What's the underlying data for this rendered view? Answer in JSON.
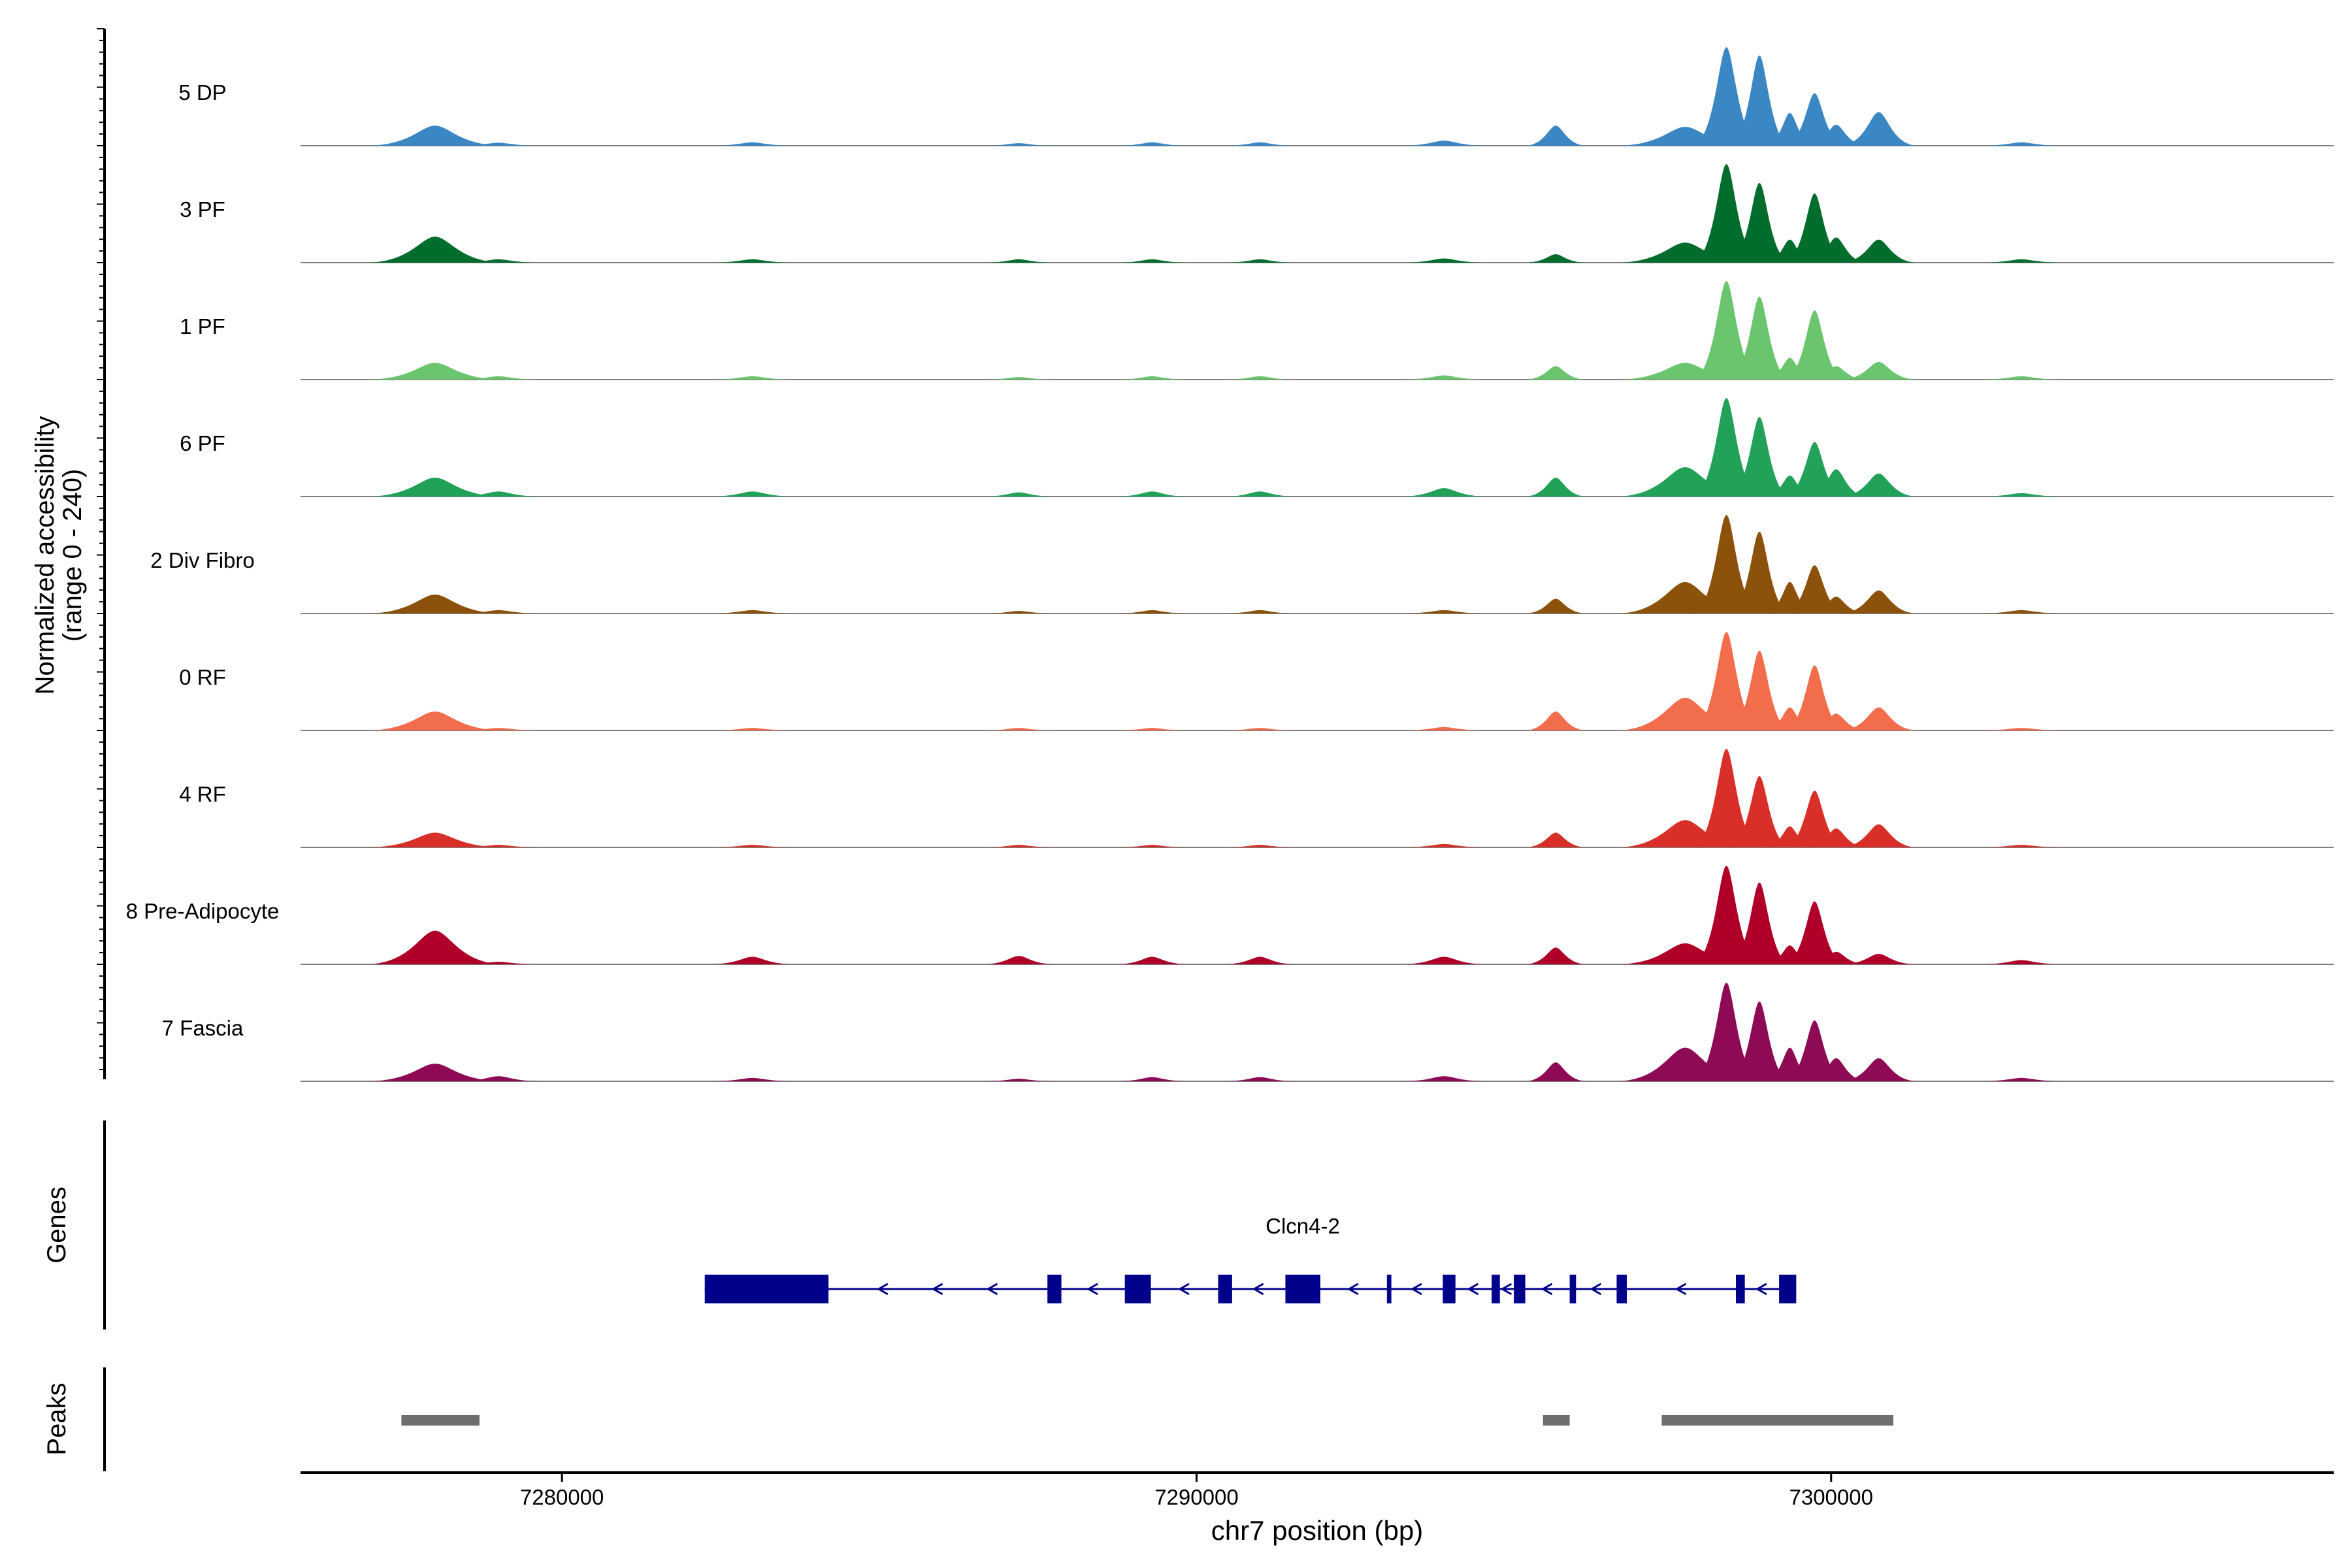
{
  "colors": {
    "axis": "#000000",
    "baseline": "#7f7f7f",
    "gene": "#00008b",
    "peak": "#6e6e6e"
  },
  "chart_data": {
    "type": "area",
    "title": "",
    "ylabel_line1": "Normalized accessibility",
    "ylabel_line2": "(range 0 - 240)",
    "xlabel": "chr7 position (bp)",
    "ylim": [
      0,
      240
    ],
    "xlim": [
      7275880,
      7307920
    ],
    "xticks": [
      7280000,
      7290000,
      7300000
    ],
    "xtick_labels": [
      "7280000",
      "7290000",
      "7300000"
    ],
    "shared_y_positions": [
      7278000,
      7279000,
      7283000,
      7287200,
      7289300,
      7291000,
      7293900,
      7295660,
      7297700,
      7298350,
      7298870,
      7299350,
      7299740,
      7300080,
      7300750,
      7303000
    ],
    "series": [
      {
        "name": "5 DP",
        "color": "#3a87c4",
        "values": [
          48,
          7,
          8,
          6,
          8,
          8,
          12,
          48,
          45,
          235,
          215,
          78,
          125,
          50,
          80,
          8
        ]
      },
      {
        "name": "3 PF",
        "color": "#006d2c",
        "values": [
          62,
          8,
          8,
          8,
          8,
          8,
          10,
          20,
          48,
          235,
          190,
          55,
          165,
          60,
          55,
          8
        ]
      },
      {
        "name": "1 PF",
        "color": "#6bc56e",
        "values": [
          40,
          8,
          8,
          6,
          8,
          8,
          10,
          32,
          40,
          235,
          198,
          52,
          165,
          32,
          42,
          8
        ]
      },
      {
        "name": "6 PF",
        "color": "#22a158",
        "values": [
          45,
          12,
          12,
          10,
          12,
          12,
          20,
          45,
          70,
          235,
          190,
          50,
          130,
          65,
          55,
          8
        ]
      },
      {
        "name": "2 Div Fibro",
        "color": "#8c510a",
        "values": [
          45,
          8,
          8,
          6,
          8,
          8,
          8,
          35,
          75,
          235,
          195,
          75,
          115,
          40,
          55,
          8
        ]
      },
      {
        "name": "0 RF",
        "color": "#f26d4b",
        "values": [
          45,
          6,
          6,
          6,
          6,
          6,
          8,
          45,
          78,
          235,
          190,
          55,
          155,
          40,
          55,
          6
        ]
      },
      {
        "name": "4 RF",
        "color": "#d82f28",
        "values": [
          35,
          6,
          6,
          6,
          6,
          6,
          8,
          35,
          65,
          235,
          170,
          50,
          135,
          45,
          55,
          6
        ]
      },
      {
        "name": "8 Pre-Adipocyte",
        "color": "#b0002a",
        "values": [
          80,
          6,
          18,
          20,
          18,
          18,
          18,
          40,
          50,
          235,
          195,
          45,
          150,
          30,
          25,
          10
        ]
      },
      {
        "name": "7 Fascia",
        "color": "#8e0a55",
        "values": [
          42,
          12,
          8,
          6,
          10,
          10,
          12,
          45,
          80,
          235,
          190,
          80,
          145,
          55,
          55,
          8
        ]
      }
    ],
    "genes_track_label": "Genes",
    "gene": {
      "name": "Clcn4-2",
      "strand": "-",
      "start": 7282250,
      "end": 7299450,
      "exons": [
        [
          7282250,
          7284200
        ],
        [
          7287650,
          7287870
        ],
        [
          7288870,
          7289280
        ],
        [
          7290340,
          7290560
        ],
        [
          7291400,
          7291950
        ],
        [
          7293000,
          7293070
        ],
        [
          7293880,
          7294080
        ],
        [
          7294650,
          7294780
        ],
        [
          7295000,
          7295180
        ],
        [
          7295880,
          7295980
        ],
        [
          7296620,
          7296780
        ],
        [
          7298500,
          7298640
        ],
        [
          7299180,
          7299450
        ]
      ]
    },
    "peaks_track_label": "Peaks",
    "peaks": [
      [
        7277470,
        7278700
      ],
      [
        7295460,
        7295880
      ],
      [
        7297330,
        7300980
      ]
    ]
  }
}
